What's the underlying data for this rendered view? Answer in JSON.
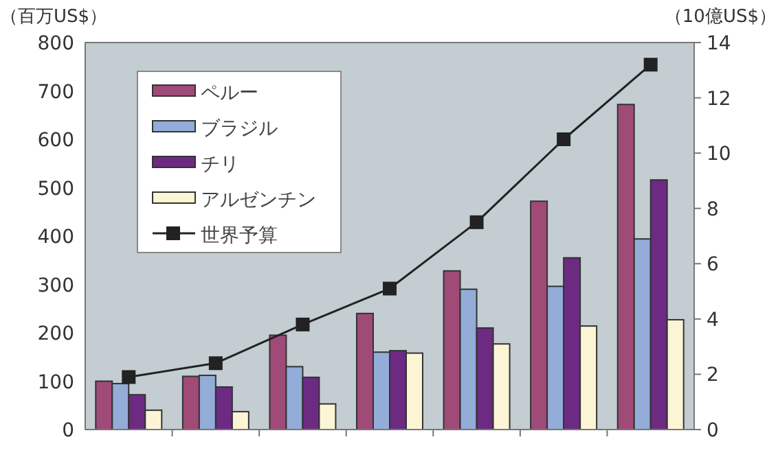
{
  "chart_data": {
    "type": "bar",
    "ylabel": "（百万US$）",
    "y2label": "（10億US$）",
    "categories": [
      null,
      null,
      null,
      null,
      null,
      null,
      null
    ],
    "series": [
      {
        "name": "ペルー",
        "color": "#a04a78",
        "values": [
          100,
          110,
          195,
          240,
          328,
          472,
          672
        ]
      },
      {
        "name": "ブラジル",
        "color": "#93acd8",
        "values": [
          95,
          112,
          130,
          160,
          290,
          296,
          394
        ]
      },
      {
        "name": "チリ",
        "color": "#6c2a82",
        "values": [
          72,
          88,
          108,
          163,
          210,
          355,
          516
        ]
      },
      {
        "name": "アルゼンチン",
        "color": "#fbf5d6",
        "values": [
          40,
          37,
          53,
          158,
          177,
          214,
          227
        ]
      },
      {
        "name": "世界予算",
        "type": "line",
        "axis": "y2",
        "color": "#222222",
        "marker": "square",
        "values": [
          1.9,
          2.4,
          3.8,
          5.1,
          7.5,
          10.5,
          13.2
        ]
      }
    ],
    "ylim": [
      0,
      800
    ],
    "yticks": [
      0,
      100,
      200,
      300,
      400,
      500,
      600,
      700,
      800
    ],
    "y2lim": [
      0,
      14
    ],
    "y2ticks": [
      0,
      2,
      4,
      6,
      8,
      10,
      12,
      14
    ],
    "grid": false,
    "legend": "top left"
  }
}
